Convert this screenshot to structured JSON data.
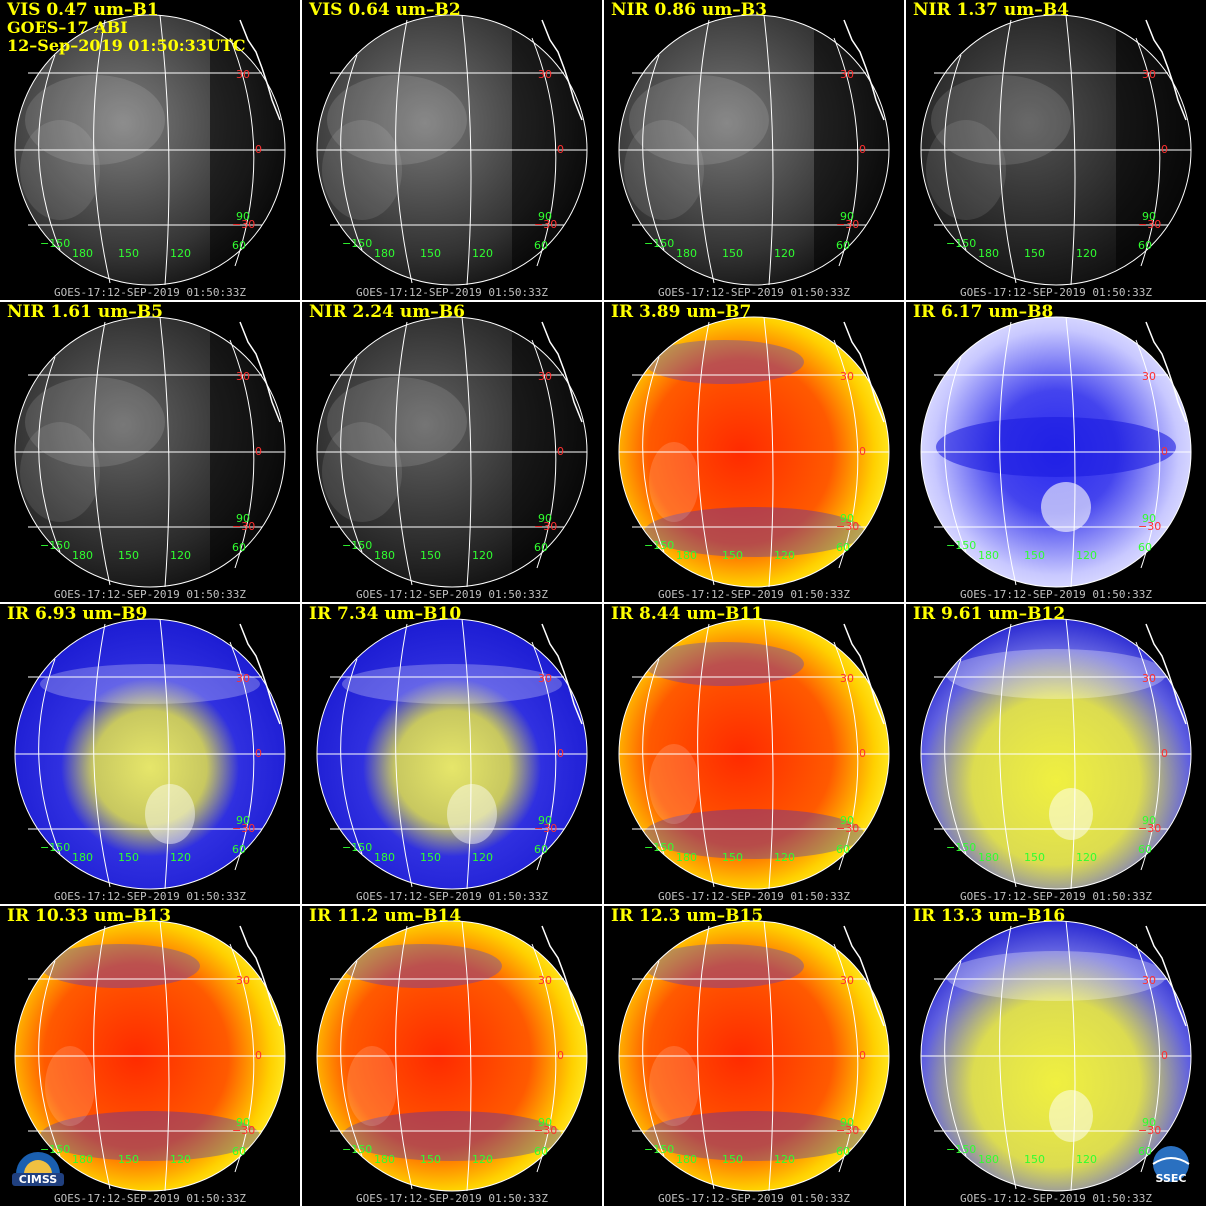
{
  "panels": [
    {
      "label": "VIS 0.47 um–B1",
      "style": "gray",
      "brightness": 0.55,
      "footer": "GOES-17:12-SEP-2019 01:50:33Z"
    },
    {
      "label": "VIS 0.64 um–B2",
      "style": "gray",
      "brightness": 0.5,
      "footer": "GOES-17:12-SEP-2019 01:50:33Z"
    },
    {
      "label": "NIR 0.86 um–B3",
      "style": "gray",
      "brightness": 0.5,
      "footer": "GOES-17:12-SEP-2019 01:50:33Z"
    },
    {
      "label": "NIR 1.37 um–B4",
      "style": "gray",
      "brightness": 0.2,
      "footer": "GOES-17:12-SEP-2019 01:50:33Z"
    },
    {
      "label": "NIR 1.61 um–B5",
      "style": "gray",
      "brightness": 0.35,
      "footer": "GOES-17:12-SEP-2019 01:50:33Z"
    },
    {
      "label": "NIR 2.24 um–B6",
      "style": "gray",
      "brightness": 0.32,
      "footer": "GOES-17:12-SEP-2019 01:50:33Z"
    },
    {
      "label": "IR 3.89 um–B7",
      "style": "warm",
      "brightness": 1,
      "footer": "GOES-17:12-SEP-2019 01:50:33Z"
    },
    {
      "label": "IR 6.17 um–B8",
      "style": "wv-white",
      "brightness": 1,
      "footer": "GOES-17:12-SEP-2019 01:50:33Z"
    },
    {
      "label": "IR 6.93 um–B9",
      "style": "wv",
      "brightness": 1,
      "footer": "GOES-17:12-SEP-2019 01:50:33Z"
    },
    {
      "label": "IR 7.34 um–B10",
      "style": "wv",
      "brightness": 1,
      "footer": "GOES-17:12-SEP-2019 01:50:33Z"
    },
    {
      "label": "IR 8.44 um–B11",
      "style": "warm",
      "brightness": 1,
      "footer": "GOES-17:12-SEP-2019 01:50:33Z"
    },
    {
      "label": "IR 9.61 um–B12",
      "style": "wv-yellow",
      "brightness": 1,
      "footer": "GOES-17:12-SEP-2019 01:50:33Z"
    },
    {
      "label": "IR 10.33 um–B13",
      "style": "warm",
      "brightness": 1,
      "footer": "GOES-17:12-SEP-2019 01:50:33Z"
    },
    {
      "label": "IR 11.2 um–B14",
      "style": "warm",
      "brightness": 1,
      "footer": "GOES-17:12-SEP-2019 01:50:33Z"
    },
    {
      "label": "IR 12.3 um–B15",
      "style": "warm",
      "brightness": 1,
      "footer": "GOES-17:12-SEP-2019 01:50:33Z"
    },
    {
      "label": "IR 13.3 um–B16",
      "style": "wv-yellow",
      "brightness": 1,
      "footer": "GOES-17:12-SEP-2019 01:50:33Z"
    }
  ],
  "header": {
    "satellite": "GOES–17 ABI",
    "timestamp": "12–Sep–2019 01:50:33UTC"
  },
  "grid_labels": {
    "lat": [
      "30",
      "0",
      "−30"
    ],
    "lon": [
      "−150",
      "180",
      "150",
      "120",
      "60",
      "90"
    ]
  },
  "logos": {
    "left": "CIMSS",
    "right": "SSEC"
  },
  "colors": {
    "label": "#ffff00",
    "footer": "#c0c0c0",
    "lat_label": "#ff3030",
    "lon_label": "#30ff30",
    "grid": "#ffffff"
  }
}
